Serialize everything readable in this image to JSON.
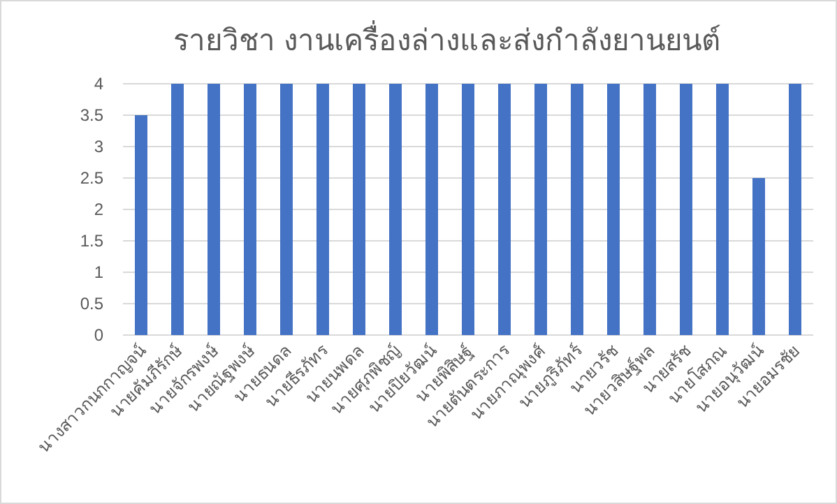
{
  "chart_data": {
    "type": "bar",
    "title": "รายวิชา งานเครื่องล่างและส่งกำลังยานยนต์",
    "categories": [
      "นางสาวกนกกาญจน์",
      "นายคัมภีรักษ์",
      "นายจักรพงษ์",
      "นายณัฐพงษ์",
      "นายธนดล",
      "นายธีรภัทร",
      "นายนพดล",
      "นายศุภพิชญ์",
      "นายปิยวัฒน์",
      "นายพิสิษฐ์",
      "นายตันตระการ",
      "นายภาณุพงศ์",
      "นายภูริภัทร์",
      "นายวรัช",
      "นายวสิษฐ์พล",
      "นายสรัช",
      "นายโสภณ",
      "นายอนุวัฒน์",
      "นายอมรชัย"
    ],
    "values": [
      3.5,
      4,
      4,
      4,
      4,
      4,
      4,
      4,
      4,
      4,
      4,
      4,
      4,
      4,
      4,
      4,
      4,
      2.5,
      4
    ],
    "color": "#4472c4",
    "ylim": [
      0,
      4
    ],
    "yticks": [
      0,
      0.5,
      1,
      1.5,
      2,
      2.5,
      3,
      3.5,
      4
    ],
    "grid": "y"
  }
}
